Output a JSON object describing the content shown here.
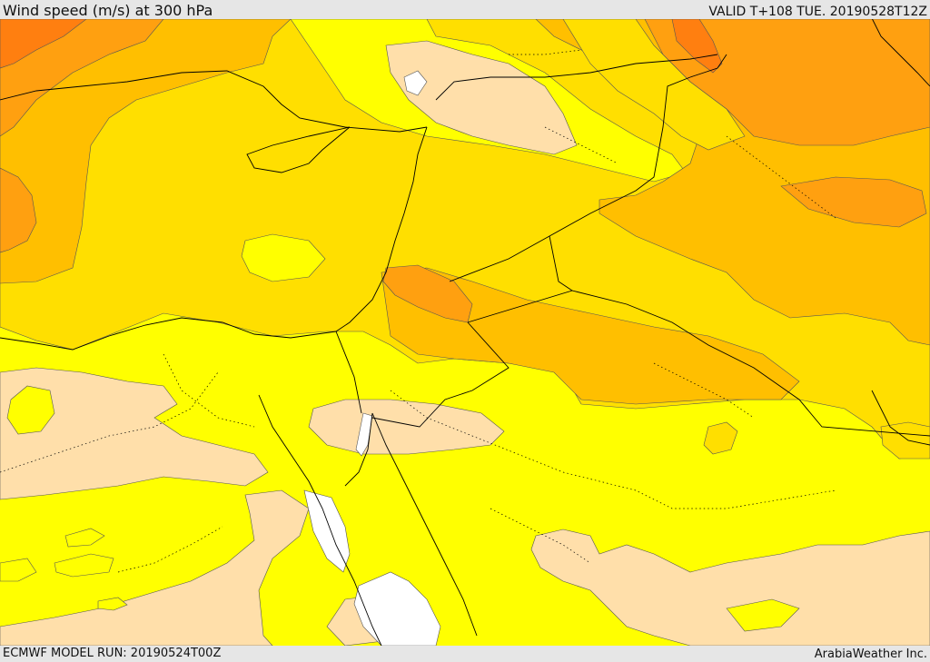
{
  "header": {
    "title": "Wind speed (m/s) at 300 hPa",
    "valid": "VALID T+108 TUE. 20190528T12Z"
  },
  "footer": {
    "model_run": "ECMWF MODEL RUN: 20190524T00Z",
    "credit": "ArabiaWeather Inc."
  },
  "palette": {
    "level_1": "#ffdfaa",
    "level_2": "#ffff00",
    "level_3": "#ffdf00",
    "level_4": "#ffbf00",
    "level_5": "#ffa010",
    "level_6": "#ff7f10",
    "no_data": "#ffffff",
    "borders": "#000000"
  }
}
